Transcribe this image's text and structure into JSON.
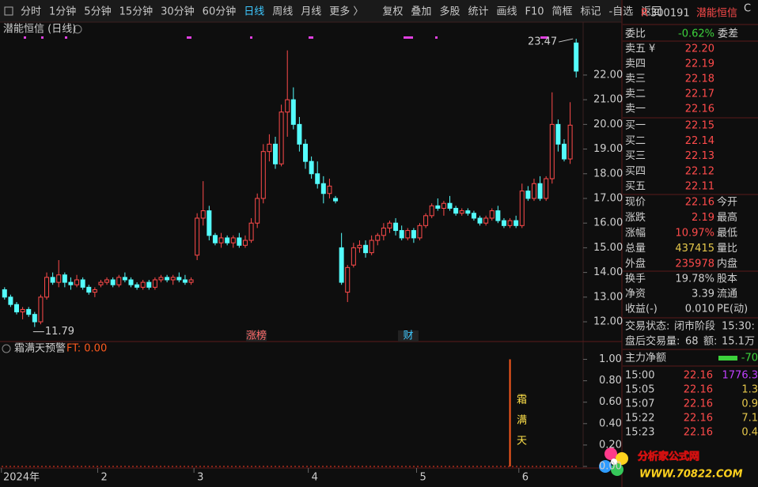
{
  "toolbar": {
    "tabs": [
      "分时",
      "1分钟",
      "5分钟",
      "15分钟",
      "30分钟",
      "60分钟",
      "日线",
      "周线",
      "月线",
      "更多 〉",
      "复权",
      "叠加",
      "多股",
      "统计",
      "画线",
      "F10",
      "简框",
      "标记",
      "-自选",
      "返回"
    ],
    "active_index": 6
  },
  "chart_data": {
    "type": "candlestick",
    "title": "潜能恒信 (日线)",
    "up_color": "#ff4b4b",
    "down_color": "#54fcfc",
    "ylim": [
      11.2,
      23.6
    ],
    "yticks": [
      {
        "value": 12,
        "label": "12.00"
      },
      {
        "value": 13,
        "label": "13.00"
      },
      {
        "value": 14,
        "label": "14.00"
      },
      {
        "value": 15,
        "label": "15.00"
      },
      {
        "value": 16,
        "label": "16.00"
      },
      {
        "value": 17,
        "label": "17.00"
      },
      {
        "value": 18,
        "label": "18.00"
      },
      {
        "value": 19,
        "label": "19.00"
      },
      {
        "value": 20,
        "label": "20.00"
      },
      {
        "value": 21,
        "label": "21.00"
      },
      {
        "value": 22,
        "label": "22.00"
      }
    ],
    "categories": [
      "2024年",
      null,
      null,
      null,
      null,
      null,
      null,
      null,
      null,
      null,
      null,
      null,
      null,
      null,
      null,
      null,
      "2",
      null,
      null,
      null,
      null,
      null,
      null,
      null,
      null,
      null,
      null,
      null,
      null,
      null,
      null,
      null,
      "3",
      null,
      null,
      null,
      null,
      null,
      null,
      null,
      null,
      null,
      null,
      null,
      null,
      null,
      null,
      null,
      null,
      null,
      null,
      "4",
      null,
      null,
      null,
      null,
      null,
      null,
      null,
      null,
      null,
      null,
      null,
      null,
      null,
      null,
      null,
      null,
      null,
      "5",
      null,
      null,
      null,
      null,
      null,
      null,
      null,
      null,
      null,
      null,
      null,
      null,
      null,
      null,
      null,
      null,
      "6",
      null,
      null,
      null,
      null,
      null,
      null,
      null,
      null,
      null
    ],
    "candles": [
      [
        13.3,
        13.4,
        12.9,
        13.0
      ],
      [
        13.0,
        13.1,
        12.6,
        12.7
      ],
      [
        12.7,
        12.8,
        12.3,
        12.4
      ],
      [
        12.4,
        12.6,
        12.1,
        12.5
      ],
      [
        12.5,
        12.6,
        12.2,
        12.3
      ],
      [
        12.3,
        12.4,
        11.79,
        12.0
      ],
      [
        12.0,
        13.1,
        11.9,
        13.0
      ],
      [
        13.0,
        14.0,
        12.9,
        13.8
      ],
      [
        13.8,
        14.0,
        13.5,
        13.6
      ],
      [
        13.6,
        14.5,
        13.4,
        13.9
      ],
      [
        13.9,
        14.0,
        13.4,
        13.6
      ],
      [
        13.6,
        13.8,
        13.3,
        13.5
      ],
      [
        13.5,
        13.9,
        13.4,
        13.7
      ],
      [
        13.7,
        13.8,
        13.3,
        13.4
      ],
      [
        13.4,
        13.5,
        13.1,
        13.2
      ],
      [
        13.2,
        13.4,
        13.0,
        13.3
      ],
      [
        13.5,
        13.7,
        13.4,
        13.6
      ],
      [
        13.6,
        13.8,
        13.5,
        13.7
      ],
      [
        13.7,
        13.8,
        13.4,
        13.5
      ],
      [
        13.5,
        13.9,
        13.4,
        13.8
      ],
      [
        13.8,
        14.0,
        13.6,
        13.7
      ],
      [
        13.7,
        13.8,
        13.4,
        13.5
      ],
      [
        13.5,
        13.6,
        13.3,
        13.4
      ],
      [
        13.4,
        13.7,
        13.3,
        13.6
      ],
      [
        13.6,
        13.7,
        13.3,
        13.4
      ],
      [
        13.4,
        13.8,
        13.3,
        13.7
      ],
      [
        13.7,
        13.9,
        13.6,
        13.8
      ],
      [
        13.8,
        13.9,
        13.6,
        13.7
      ],
      [
        13.7,
        13.9,
        13.5,
        13.8
      ],
      [
        13.8,
        14.0,
        13.6,
        13.7
      ],
      [
        13.7,
        13.9,
        13.5,
        13.6
      ],
      [
        13.6,
        13.8,
        13.5,
        13.7
      ],
      [
        14.7,
        16.4,
        14.5,
        16.2
      ],
      [
        16.2,
        17.7,
        15.9,
        16.5
      ],
      [
        16.5,
        16.7,
        15.3,
        15.5
      ],
      [
        15.5,
        15.6,
        15.1,
        15.2
      ],
      [
        15.2,
        15.6,
        15.0,
        15.4
      ],
      [
        15.4,
        15.5,
        15.1,
        15.2
      ],
      [
        15.2,
        15.5,
        15.0,
        15.4
      ],
      [
        15.4,
        15.6,
        15.0,
        15.1
      ],
      [
        15.1,
        15.5,
        15.0,
        15.3
      ],
      [
        15.3,
        16.2,
        15.2,
        16.0
      ],
      [
        16.0,
        17.2,
        15.8,
        17.0
      ],
      [
        17.0,
        19.2,
        16.8,
        18.9
      ],
      [
        18.9,
        19.6,
        18.5,
        19.2
      ],
      [
        19.2,
        19.5,
        18.2,
        18.4
      ],
      [
        18.4,
        20.8,
        18.3,
        20.5
      ],
      [
        20.5,
        23.0,
        19.5,
        21.0
      ],
      [
        21.0,
        21.5,
        19.8,
        20.0
      ],
      [
        20.0,
        20.3,
        18.9,
        19.2
      ],
      [
        19.2,
        19.4,
        18.2,
        18.5
      ],
      [
        18.5,
        18.7,
        17.8,
        18.0
      ],
      [
        18.0,
        18.5,
        17.4,
        17.6
      ],
      [
        17.6,
        17.9,
        16.8,
        17.2
      ],
      [
        17.2,
        17.8,
        17.0,
        17.5
      ],
      [
        17.0,
        17.1,
        16.8,
        16.9
      ],
      [
        15.0,
        15.6,
        13.5,
        13.6
      ],
      [
        13.2,
        14.3,
        12.8,
        14.2
      ],
      [
        14.3,
        15.2,
        14.2,
        15.0
      ],
      [
        15.0,
        15.3,
        14.8,
        15.1
      ],
      [
        15.1,
        15.3,
        14.6,
        14.8
      ],
      [
        14.8,
        15.5,
        14.7,
        15.3
      ],
      [
        15.3,
        15.6,
        15.1,
        15.5
      ],
      [
        15.5,
        16.0,
        15.3,
        15.8
      ],
      [
        15.8,
        16.1,
        15.6,
        16.0
      ],
      [
        16.0,
        16.2,
        15.5,
        15.7
      ],
      [
        15.7,
        15.9,
        15.3,
        15.4
      ],
      [
        15.4,
        15.8,
        15.3,
        15.7
      ],
      [
        15.7,
        15.8,
        15.2,
        15.4
      ],
      [
        15.4,
        16.0,
        15.3,
        15.9
      ],
      [
        15.9,
        16.4,
        15.8,
        16.3
      ],
      [
        16.3,
        16.8,
        16.2,
        16.7
      ],
      [
        16.7,
        17.0,
        16.5,
        16.6
      ],
      [
        16.6,
        16.9,
        16.3,
        16.8
      ],
      [
        16.8,
        17.1,
        16.5,
        16.6
      ],
      [
        16.6,
        16.7,
        16.3,
        16.4
      ],
      [
        16.4,
        16.6,
        16.3,
        16.5
      ],
      [
        16.5,
        16.6,
        16.3,
        16.4
      ],
      [
        16.4,
        16.5,
        16.1,
        16.2
      ],
      [
        16.2,
        16.3,
        15.9,
        16.0
      ],
      [
        16.0,
        16.3,
        15.9,
        16.2
      ],
      [
        16.2,
        16.6,
        16.1,
        16.5
      ],
      [
        16.5,
        16.7,
        16.0,
        16.1
      ],
      [
        16.1,
        16.2,
        15.8,
        15.9
      ],
      [
        15.9,
        16.2,
        15.8,
        16.1
      ],
      [
        16.1,
        16.3,
        15.8,
        15.9
      ],
      [
        15.9,
        17.6,
        15.8,
        17.3
      ],
      [
        17.3,
        17.5,
        16.9,
        17.0
      ],
      [
        17.0,
        17.8,
        16.9,
        17.6
      ],
      [
        17.6,
        17.9,
        16.9,
        17.0
      ],
      [
        17.0,
        17.9,
        16.9,
        17.8
      ],
      [
        17.8,
        21.3,
        17.6,
        20.0
      ],
      [
        20.0,
        20.2,
        18.9,
        19.2
      ],
      [
        19.2,
        19.4,
        18.5,
        18.6
      ],
      [
        18.6,
        20.9,
        18.4,
        19.97
      ],
      [
        23.3,
        23.47,
        21.9,
        22.16
      ]
    ],
    "low_index": 5,
    "high_index": 95,
    "events": [
      "涨榜",
      "财"
    ],
    "indicator": {
      "title": "霜满天预警",
      "ft_label": "FT: 0.00",
      "ylim": [
        0,
        1.1
      ],
      "yticks": [
        {
          "value": 0,
          "label": "0.00"
        },
        {
          "value": 0.2,
          "label": "0.20"
        },
        {
          "value": 0.4,
          "label": "0.40"
        },
        {
          "value": 0.6,
          "label": "0.60"
        },
        {
          "value": 0.8,
          "label": "0.80"
        },
        {
          "value": 1,
          "label": "1.00"
        }
      ],
      "signal": {
        "category_index": 84,
        "value": 1,
        "text": "霜满天",
        "color": "#ff5a1e"
      }
    }
  },
  "quote": {
    "flag": "R",
    "code": "300191",
    "name": "潜能恒信",
    "mark": "C",
    "ratio_label": "委比",
    "ratio": "-0.62%",
    "diff_label": "委差",
    "asks": [
      {
        "label": "卖五",
        "currency": "¥",
        "price": "22.20"
      },
      {
        "label": "卖四",
        "price": "22.19"
      },
      {
        "label": "卖三",
        "price": "22.18"
      },
      {
        "label": "卖二",
        "price": "22.17"
      },
      {
        "label": "卖一",
        "price": "22.16"
      }
    ],
    "bids": [
      {
        "label": "买一",
        "price": "22.15"
      },
      {
        "label": "买二",
        "price": "22.14"
      },
      {
        "label": "买三",
        "price": "22.13"
      },
      {
        "label": "买四",
        "price": "22.12"
      },
      {
        "label": "买五",
        "price": "22.11"
      }
    ],
    "stats": [
      {
        "label": "现价",
        "value": "22.16",
        "label2": "今开",
        "color": "#ff4b4b"
      },
      {
        "label": "涨跌",
        "value": "2.19",
        "label2": "最高",
        "color": "#ff4b4b"
      },
      {
        "label": "涨幅",
        "value": "10.97%",
        "label2": "最低",
        "color": "#ff4b4b"
      },
      {
        "label": "总量",
        "value": "437415",
        "label2": "量比",
        "color": "#e6c84b"
      },
      {
        "label": "外盘",
        "value": "235978",
        "label2": "内盘",
        "color": "#ff4b4b"
      }
    ],
    "stats2": [
      {
        "label": "换手",
        "value": "19.78%",
        "label2": "股本"
      },
      {
        "label": "净资",
        "value": "3.39",
        "label2": "流通"
      },
      {
        "label": "收益(-)",
        "value": "0.010",
        "label2": "PE(动)"
      }
    ],
    "state": [
      "交易状态:",
      "闭市阶段",
      "15:30:"
    ],
    "after": [
      "盘后交易量:",
      "68",
      "额:",
      "15.1万"
    ],
    "force": [
      "主力净额",
      "-70"
    ],
    "trades": [
      [
        "15:00",
        "22.16",
        "1776.3"
      ],
      [
        "15:05",
        "22.16",
        "1.3"
      ],
      [
        "15:07",
        "22.16",
        "0.9"
      ],
      [
        "15:22",
        "22.16",
        "7.1"
      ],
      [
        "15:23",
        "22.16",
        "0.4"
      ]
    ]
  },
  "watermark": {
    "title": "分析家公式网",
    "url": "WWW.70822.COM"
  }
}
